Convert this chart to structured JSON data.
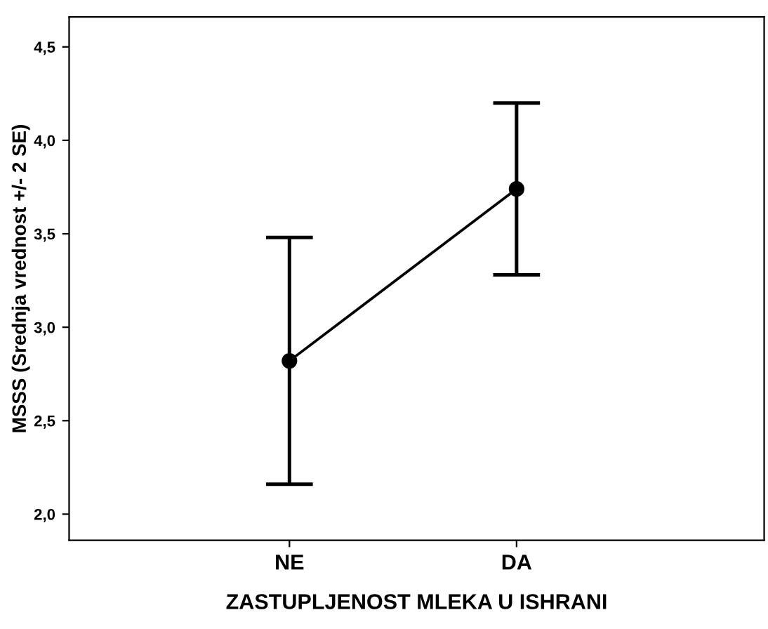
{
  "chart_data": {
    "type": "line",
    "xlabel": "ZASTUPLJENOST MLEKA U ISHRANI",
    "ylabel": "MSSS (Srednja vrednost +/- 2 SE)",
    "categories": [
      "NE",
      "DA"
    ],
    "series": [
      {
        "color": "#000000",
        "values": [
          2.82,
          3.74
        ],
        "errors": [
          [
            2.16,
            3.48
          ],
          [
            3.28,
            4.2
          ]
        ]
      }
    ],
    "marker": "circle",
    "line_style": "solid",
    "grid": false,
    "legend": false,
    "ylim": [
      1.86,
      4.66
    ],
    "yticks": [
      {
        "value": 2.0,
        "label": "2,0"
      },
      {
        "value": 2.5,
        "label": "2,5"
      },
      {
        "value": 3.0,
        "label": "3,0"
      },
      {
        "value": 3.5,
        "label": "3,5"
      },
      {
        "value": 4.0,
        "label": "4,0"
      },
      {
        "value": 4.5,
        "label": "4,5"
      }
    ]
  }
}
